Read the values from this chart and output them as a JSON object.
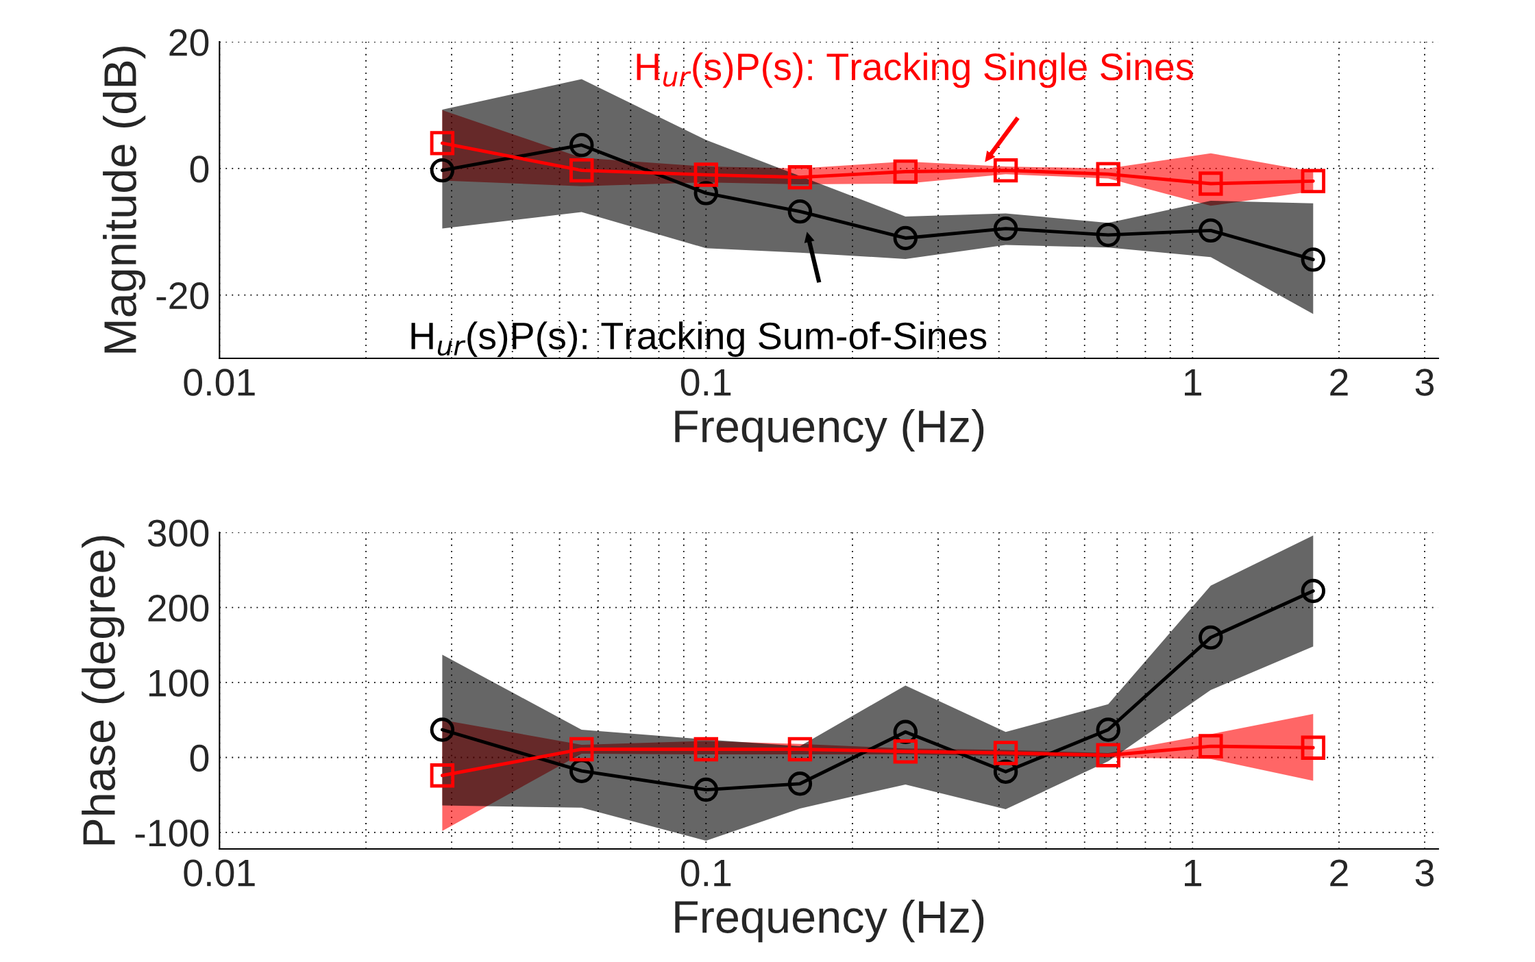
{
  "chart_data": [
    {
      "type": "line",
      "xlabel": "Frequency (Hz)",
      "ylabel": "Magnitude (dB)",
      "log": "x",
      "grid": true,
      "x": [
        0.0287,
        0.0555,
        0.1,
        0.156,
        0.257,
        0.413,
        0.671,
        1.09,
        1.77
      ],
      "xlim": [
        0.01,
        3.2
      ],
      "xticks": [
        0.01,
        0.1,
        1,
        2,
        3
      ],
      "ylim": [
        -30,
        20
      ],
      "yticks": [
        -20,
        0,
        20
      ],
      "series": [
        {
          "color": "#ff0000",
          "marker": "square",
          "values": [
            4.0,
            -0.3,
            -1.0,
            -1.4,
            -0.5,
            -0.3,
            -0.9,
            -2.4,
            -2.0
          ],
          "lower": [
            -1.9,
            -2.8,
            -2.2,
            -2.5,
            -2.4,
            -0.9,
            -1.6,
            -5.9,
            -3.6
          ],
          "upper": [
            9.2,
            1.7,
            0.3,
            0.0,
            1.1,
            0.3,
            0.0,
            2.4,
            -0.5
          ]
        },
        {
          "color": "#000000",
          "marker": "circle",
          "values": [
            -0.3,
            3.7,
            -3.9,
            -6.8,
            -11.0,
            -9.5,
            -10.5,
            -9.8,
            -14.4
          ],
          "lower": [
            -9.5,
            -6.9,
            -12.6,
            -13.3,
            -14.3,
            -12.1,
            -12.5,
            -14.0,
            -23.0
          ],
          "upper": [
            9.3,
            14.1,
            4.5,
            -1.2,
            -7.6,
            -7.1,
            -8.6,
            -5.1,
            -5.5
          ]
        }
      ],
      "annotations": [
        "H$_{ur}$(s)P(s): Tracking Single Sines",
        "H$_{ur}$(s)P(s): Tracking Sum-of-Sines"
      ]
    },
    {
      "type": "line",
      "xlabel": "Frequency (Hz)",
      "ylabel": "Phase (degree)",
      "log": "x",
      "grid": true,
      "x": [
        0.0287,
        0.0555,
        0.1,
        0.156,
        0.257,
        0.413,
        0.671,
        1.09,
        1.77
      ],
      "xlim": [
        0.01,
        3.2
      ],
      "xticks": [
        0.01,
        0.1,
        1,
        2,
        3
      ],
      "ylim": [
        -122,
        300
      ],
      "yticks": [
        -100,
        0,
        100,
        200,
        300
      ],
      "series": [
        {
          "color": "#ff0000",
          "marker": "square",
          "values": [
            -24,
            11,
            11,
            11,
            8,
            6,
            3,
            15,
            13
          ],
          "lower": [
            -98,
            5,
            4,
            4,
            4,
            2,
            0,
            -2,
            -31
          ],
          "upper": [
            50,
            17,
            22,
            18,
            12,
            10,
            6,
            31,
            58
          ]
        },
        {
          "color": "#000000",
          "marker": "circle",
          "values": [
            37,
            -18,
            -43,
            -35,
            34,
            -19,
            37,
            160,
            222
          ],
          "lower": [
            -64,
            -67,
            -111,
            -68,
            -36,
            -69,
            -5,
            90,
            148
          ],
          "upper": [
            137,
            37,
            24,
            15,
            96,
            34,
            71,
            229,
            296
          ]
        }
      ]
    }
  ]
}
